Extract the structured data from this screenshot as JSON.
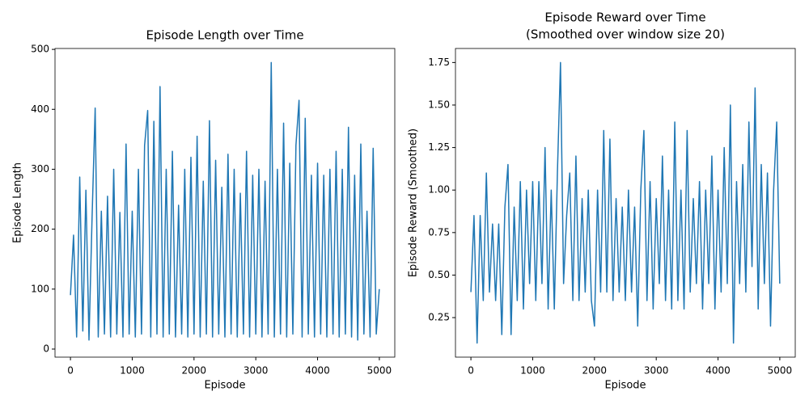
{
  "chart_data": [
    {
      "type": "line",
      "title": "Episode Length over Time",
      "xlabel": "Episode",
      "ylabel": "Episode Length",
      "color": "#1f77b4",
      "x": [
        0,
        50,
        100,
        150,
        200,
        250,
        300,
        350,
        400,
        450,
        500,
        550,
        600,
        650,
        700,
        750,
        800,
        850,
        900,
        950,
        1000,
        1050,
        1100,
        1150,
        1200,
        1250,
        1300,
        1350,
        1400,
        1450,
        1500,
        1550,
        1600,
        1650,
        1700,
        1750,
        1800,
        1850,
        1900,
        1950,
        2000,
        2050,
        2100,
        2150,
        2200,
        2250,
        2300,
        2350,
        2400,
        2450,
        2500,
        2550,
        2600,
        2650,
        2700,
        2750,
        2800,
        2850,
        2900,
        2950,
        3000,
        3050,
        3100,
        3150,
        3200,
        3250,
        3300,
        3350,
        3400,
        3450,
        3500,
        3550,
        3600,
        3650,
        3700,
        3750,
        3800,
        3850,
        3900,
        3950,
        4000,
        4050,
        4100,
        4150,
        4200,
        4250,
        4300,
        4350,
        4400,
        4450,
        4500,
        4550,
        4600,
        4650,
        4700,
        4750,
        4800,
        4850,
        4900,
        4950,
        4999
      ],
      "values": [
        90,
        190,
        20,
        287,
        30,
        265,
        15,
        220,
        402,
        20,
        230,
        25,
        255,
        20,
        300,
        25,
        228,
        20,
        342,
        25,
        230,
        20,
        300,
        25,
        340,
        398,
        20,
        380,
        25,
        438,
        20,
        300,
        25,
        330,
        20,
        240,
        25,
        300,
        20,
        320,
        25,
        355,
        20,
        280,
        25,
        381,
        20,
        315,
        25,
        270,
        20,
        325,
        25,
        300,
        20,
        260,
        25,
        330,
        20,
        290,
        25,
        300,
        20,
        280,
        25,
        478,
        20,
        300,
        25,
        377,
        20,
        310,
        25,
        340,
        415,
        20,
        385,
        25,
        290,
        20,
        310,
        25,
        290,
        20,
        300,
        25,
        330,
        20,
        300,
        25,
        370,
        20,
        290,
        15,
        342,
        25,
        230,
        20,
        335,
        25,
        100
      ],
      "xlim": [
        -250,
        5250
      ],
      "ylim": [
        -13.5,
        501.5
      ],
      "xticks": [
        0,
        1000,
        2000,
        3000,
        4000,
        5000
      ],
      "yticks": [
        0,
        100,
        200,
        300,
        400,
        500
      ],
      "grid": false
    },
    {
      "type": "line",
      "title": "Episode Reward over Time",
      "subtitle": "(Smoothed over window size 20)",
      "xlabel": "Episode",
      "ylabel": "Episode Reward (Smoothed)",
      "color": "#1f77b4",
      "x": [
        0,
        50,
        100,
        150,
        200,
        250,
        300,
        350,
        400,
        450,
        500,
        550,
        600,
        650,
        700,
        750,
        800,
        850,
        900,
        950,
        1000,
        1050,
        1100,
        1150,
        1200,
        1250,
        1300,
        1350,
        1400,
        1450,
        1500,
        1550,
        1600,
        1650,
        1700,
        1750,
        1800,
        1850,
        1900,
        1950,
        2000,
        2050,
        2100,
        2150,
        2200,
        2250,
        2300,
        2350,
        2400,
        2450,
        2500,
        2550,
        2600,
        2650,
        2700,
        2750,
        2800,
        2850,
        2900,
        2950,
        3000,
        3050,
        3100,
        3150,
        3200,
        3250,
        3300,
        3350,
        3400,
        3450,
        3500,
        3550,
        3600,
        3650,
        3700,
        3750,
        3800,
        3850,
        3900,
        3950,
        4000,
        4050,
        4100,
        4150,
        4200,
        4250,
        4300,
        4350,
        4400,
        4450,
        4500,
        4550,
        4600,
        4650,
        4700,
        4750,
        4800,
        4850,
        4900,
        4950,
        4999
      ],
      "values": [
        0.4,
        0.85,
        0.1,
        0.85,
        0.35,
        1.1,
        0.4,
        0.8,
        0.35,
        0.8,
        0.15,
        0.9,
        1.15,
        0.15,
        0.9,
        0.35,
        1.05,
        0.3,
        1.0,
        0.45,
        1.05,
        0.35,
        1.05,
        0.45,
        1.25,
        0.3,
        1.0,
        0.3,
        1.1,
        1.75,
        0.45,
        0.85,
        1.1,
        0.35,
        1.2,
        0.35,
        0.95,
        0.4,
        1.0,
        0.35,
        0.2,
        1.0,
        0.4,
        1.35,
        0.4,
        1.3,
        0.35,
        0.95,
        0.4,
        0.9,
        0.35,
        1.0,
        0.4,
        0.9,
        0.2,
        1.0,
        1.35,
        0.35,
        1.05,
        0.3,
        0.95,
        0.45,
        1.2,
        0.35,
        1.0,
        0.3,
        1.4,
        0.35,
        1.0,
        0.3,
        1.35,
        0.4,
        0.95,
        0.45,
        1.05,
        0.3,
        1.0,
        0.45,
        1.2,
        0.3,
        1.0,
        0.4,
        1.25,
        0.45,
        1.5,
        0.1,
        1.05,
        0.45,
        1.15,
        0.4,
        1.4,
        0.55,
        1.6,
        0.3,
        1.15,
        0.45,
        1.1,
        0.2,
        1.0,
        1.4,
        0.45
      ],
      "xlim": [
        -250,
        5250
      ],
      "ylim": [
        0.0175,
        1.8325
      ],
      "xticks": [
        0,
        1000,
        2000,
        3000,
        4000,
        5000
      ],
      "yticks": [
        0.25,
        {
          "value": 0.5,
          "label": "0.50"
        },
        0.75,
        {
          "value": 1.0,
          "label": "1.00"
        },
        1.25,
        {
          "value": 1.5,
          "label": "1.50"
        },
        1.75
      ],
      "grid": false
    }
  ]
}
